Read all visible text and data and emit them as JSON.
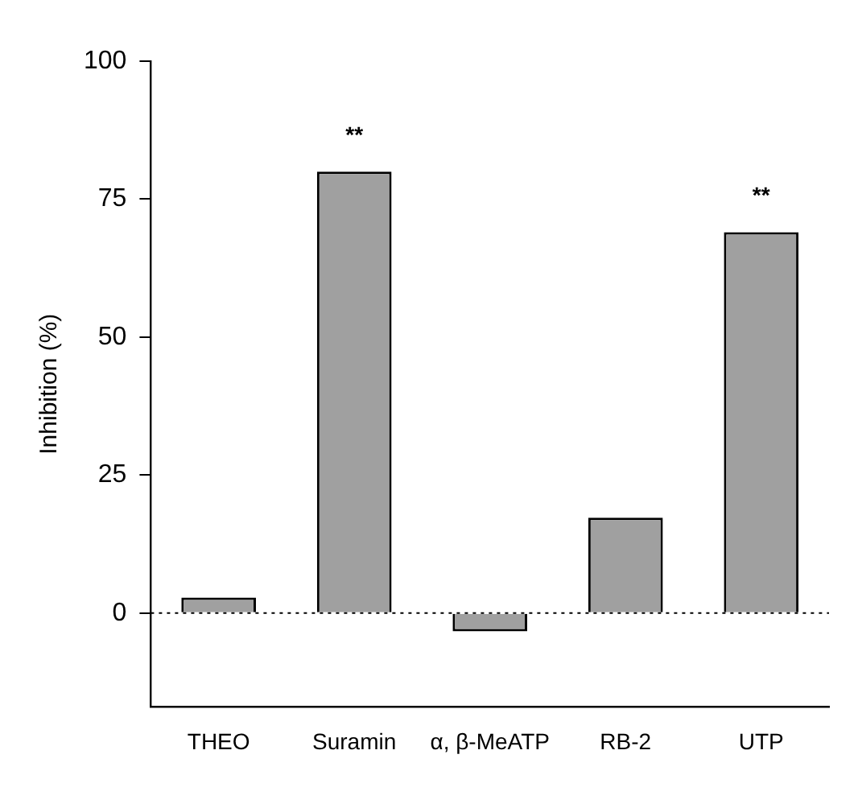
{
  "chart_data": {
    "type": "bar",
    "ylabel": "Inhibition (%)",
    "categories": [
      "THEO",
      "Suramin",
      "α, β-MeATP",
      "RB-2",
      "UTP"
    ],
    "values": [
      2.8,
      80,
      -3.3,
      17.3,
      69
    ],
    "color": "#a0a0a0",
    "ylim": [
      -17,
      100
    ],
    "yticks": [
      0,
      25,
      50,
      75,
      100
    ],
    "grid": false,
    "legend": false,
    "ref_lines": [
      {
        "axis": "y",
        "value": 0,
        "line_style": "dotted"
      }
    ],
    "annotations": [
      {
        "text": "**",
        "x": "Suramin",
        "y": 80
      },
      {
        "text": "**",
        "x": "UTP",
        "y": 69
      }
    ]
  }
}
